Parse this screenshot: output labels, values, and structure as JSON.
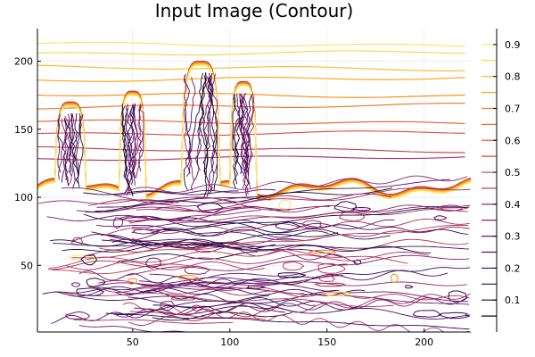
{
  "chart_data": {
    "type": "contour",
    "title": "Input Image (Contour)",
    "xlabel": "",
    "ylabel": "",
    "xlim": [
      1,
      224
    ],
    "ylim": [
      1,
      224
    ],
    "x_ticks": [
      50,
      100,
      150,
      200
    ],
    "y_ticks": [
      50,
      100,
      150,
      200
    ],
    "colorbar": {
      "range": [
        0.0,
        0.95
      ],
      "ticks": [
        0.1,
        0.2,
        0.3,
        0.4,
        0.5,
        0.6,
        0.7,
        0.8,
        0.9
      ],
      "levels": [
        0.05,
        0.1,
        0.15,
        0.2,
        0.25,
        0.3,
        0.35,
        0.4,
        0.45,
        0.5,
        0.55,
        0.6,
        0.65,
        0.7,
        0.75,
        0.8,
        0.85,
        0.9
      ],
      "colormap": [
        "#000004",
        "#1b0c41",
        "#4a0c6b",
        "#781c6d",
        "#a52c60",
        "#cf4446",
        "#ed6925",
        "#fb9b06",
        "#f7d13d",
        "#fcffa4"
      ]
    },
    "grid": true,
    "legend": "none",
    "sky_contours": [
      {
        "level": 0.88,
        "y": 213
      },
      {
        "level": 0.85,
        "y": 205
      },
      {
        "level": 0.8,
        "y": 196
      },
      {
        "level": 0.75,
        "y": 186
      },
      {
        "level": 0.7,
        "y": 176
      },
      {
        "level": 0.65,
        "y": 166
      },
      {
        "level": 0.6,
        "y": 156
      },
      {
        "level": 0.55,
        "y": 146
      },
      {
        "level": 0.5,
        "y": 136
      },
      {
        "level": 0.45,
        "y": 128
      }
    ],
    "towers": [
      {
        "x_center": 18,
        "width": 16,
        "top": 170
      },
      {
        "x_center": 50,
        "width": 14,
        "top": 178
      },
      {
        "x_center": 85,
        "width": 20,
        "top": 200
      },
      {
        "x_center": 107,
        "width": 14,
        "top": 185
      }
    ]
  }
}
